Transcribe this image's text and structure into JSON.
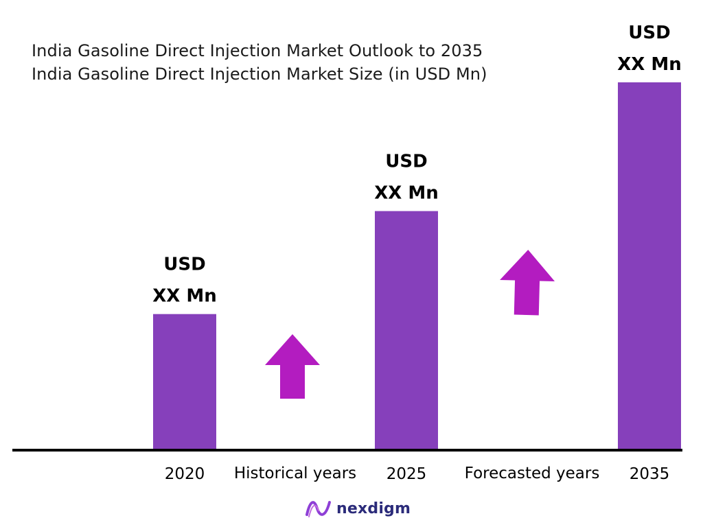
{
  "chart_data": {
    "type": "bar",
    "title": "India Gasoline Direct Injection Market Outlook to 2035",
    "subtitle": "India Gasoline Direct Injection Market Size (in USD Mn)",
    "categories": [
      "2020",
      "2025",
      "2035"
    ],
    "values": [
      0.37,
      0.65,
      1.0
    ],
    "data_labels": [
      {
        "line1": "USD",
        "line2": "XX Mn"
      },
      {
        "line1": "USD",
        "line2": "XX Mn"
      },
      {
        "line1": "USD",
        "line2": "XX Mn"
      }
    ],
    "period_labels": [
      "Historical years",
      "Forecasted years"
    ],
    "ylim": [
      0,
      1.0
    ],
    "grid": false,
    "legend": "none"
  },
  "colors": {
    "bar": "#8640BB",
    "arrow": "#B31CC0",
    "axis": "#000000",
    "logo_icon": "#8E3FD6",
    "logo_text": "#2b2b7a"
  },
  "logo": {
    "text": "nexdigm",
    "icon": "nexdigm-wave-icon"
  }
}
